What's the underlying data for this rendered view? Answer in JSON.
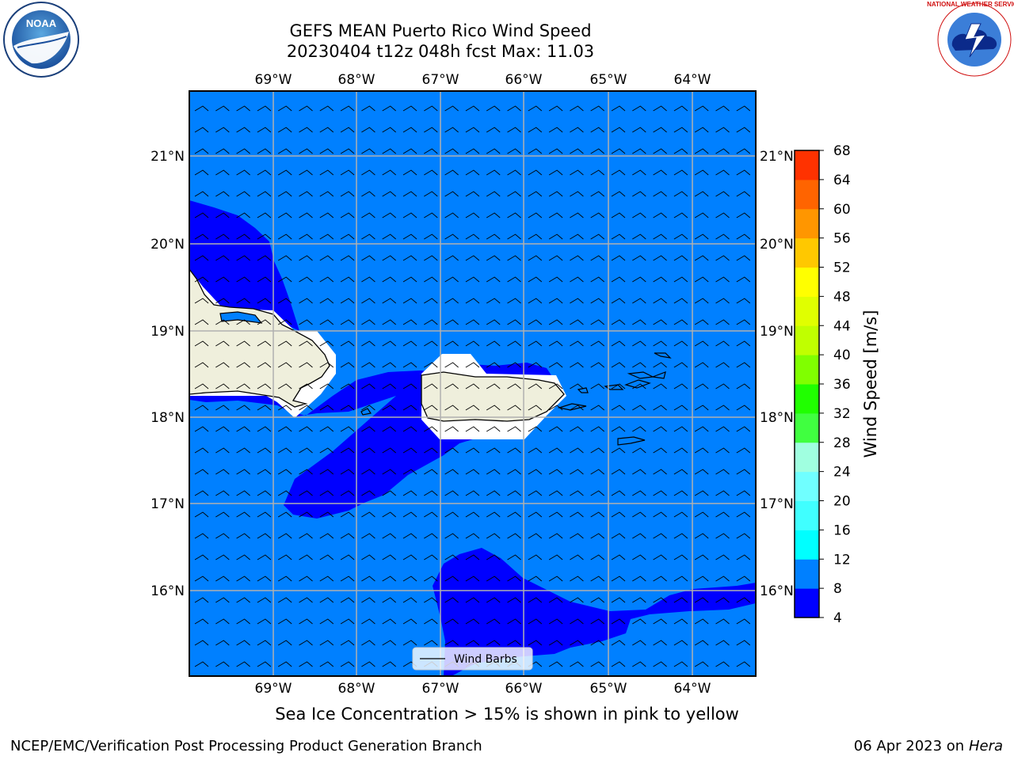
{
  "title": {
    "line1": "GEFS MEAN Puerto Rico Wind Speed",
    "line2": "20230404 t12z 048h fcst   Max: 11.03"
  },
  "axes": {
    "lon_labels": [
      "69°W",
      "68°W",
      "67°W",
      "66°W",
      "65°W",
      "64°W"
    ],
    "lat_labels": [
      "21°N",
      "20°N",
      "19°N",
      "18°N",
      "17°N",
      "16°N"
    ]
  },
  "colorbar": {
    "label": "Wind Speed [m/s]",
    "ticks": [
      "68",
      "64",
      "60",
      "56",
      "52",
      "48",
      "44",
      "40",
      "36",
      "32",
      "28",
      "24",
      "20",
      "16",
      "12",
      "8",
      "4"
    ],
    "levels": [
      4,
      8,
      12,
      16,
      20,
      24,
      28,
      32,
      36,
      40,
      44,
      48,
      52,
      56,
      60,
      64,
      68
    ],
    "colors": [
      "#0000ff",
      "#0080ff",
      "#00ffff",
      "#40ffff",
      "#70ffff",
      "#a0ffe0",
      "#40ff40",
      "#20ff00",
      "#80ff00",
      "#c0ff00",
      "#e0ff00",
      "#ffff00",
      "#ffc800",
      "#ff9600",
      "#ff6400",
      "#ff3200",
      "#ff0000"
    ]
  },
  "legend": {
    "label": "Wind Barbs"
  },
  "colors": {
    "band_4_8": "#0000ff",
    "band_8_12": "#0080ff",
    "land": "#efefdc",
    "grid": "#b0b0b0"
  },
  "logos": {
    "noaa": "NOAA",
    "nws": "NATIONAL WEATHER SERVICE"
  },
  "caption": "Sea Ice Concentration > 15% is shown in pink to yellow",
  "footer": {
    "left": "NCEP/EMC/Verification Post Processing Product Generation Branch",
    "date": "06 Apr 2023 on ",
    "machine": "Hera"
  }
}
